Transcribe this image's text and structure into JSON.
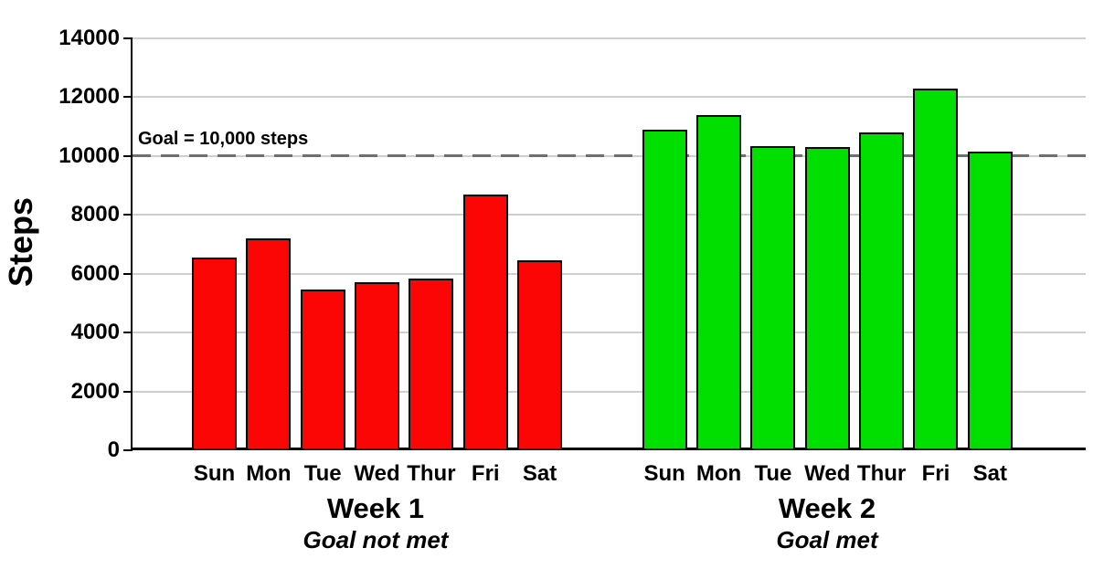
{
  "chart_data": {
    "type": "bar",
    "title": "",
    "xlabel": "",
    "ylabel": "Steps",
    "ylim": [
      0,
      14000
    ],
    "ytick_step": 2000,
    "ytick_labels": [
      "0",
      "2000",
      "4000",
      "6000",
      "8000",
      "10000",
      "12000",
      "14000"
    ],
    "categories": [
      "Sun",
      "Mon",
      "Tue",
      "Wed",
      "Thur",
      "Fri",
      "Sat"
    ],
    "series": [
      {
        "name": "Week 1",
        "sublabel": "Goal not met",
        "color": "#fb0505",
        "values": [
          6550,
          7200,
          5450,
          5700,
          5850,
          8700,
          6450
        ]
      },
      {
        "name": "Week 2",
        "sublabel": "Goal met",
        "color": "#00df00",
        "values": [
          10900,
          11400,
          10350,
          10300,
          10800,
          12300,
          10150
        ]
      }
    ],
    "annotation": {
      "text": "Goal = 10,000 steps",
      "value": 10000
    },
    "grid": true,
    "legend": false,
    "colors": {
      "axis": "#000000",
      "gridline": "#cfcfcf",
      "goal_line": "#6f6f6f",
      "bar_border": "#0a0a0a",
      "text": "#000000"
    }
  }
}
